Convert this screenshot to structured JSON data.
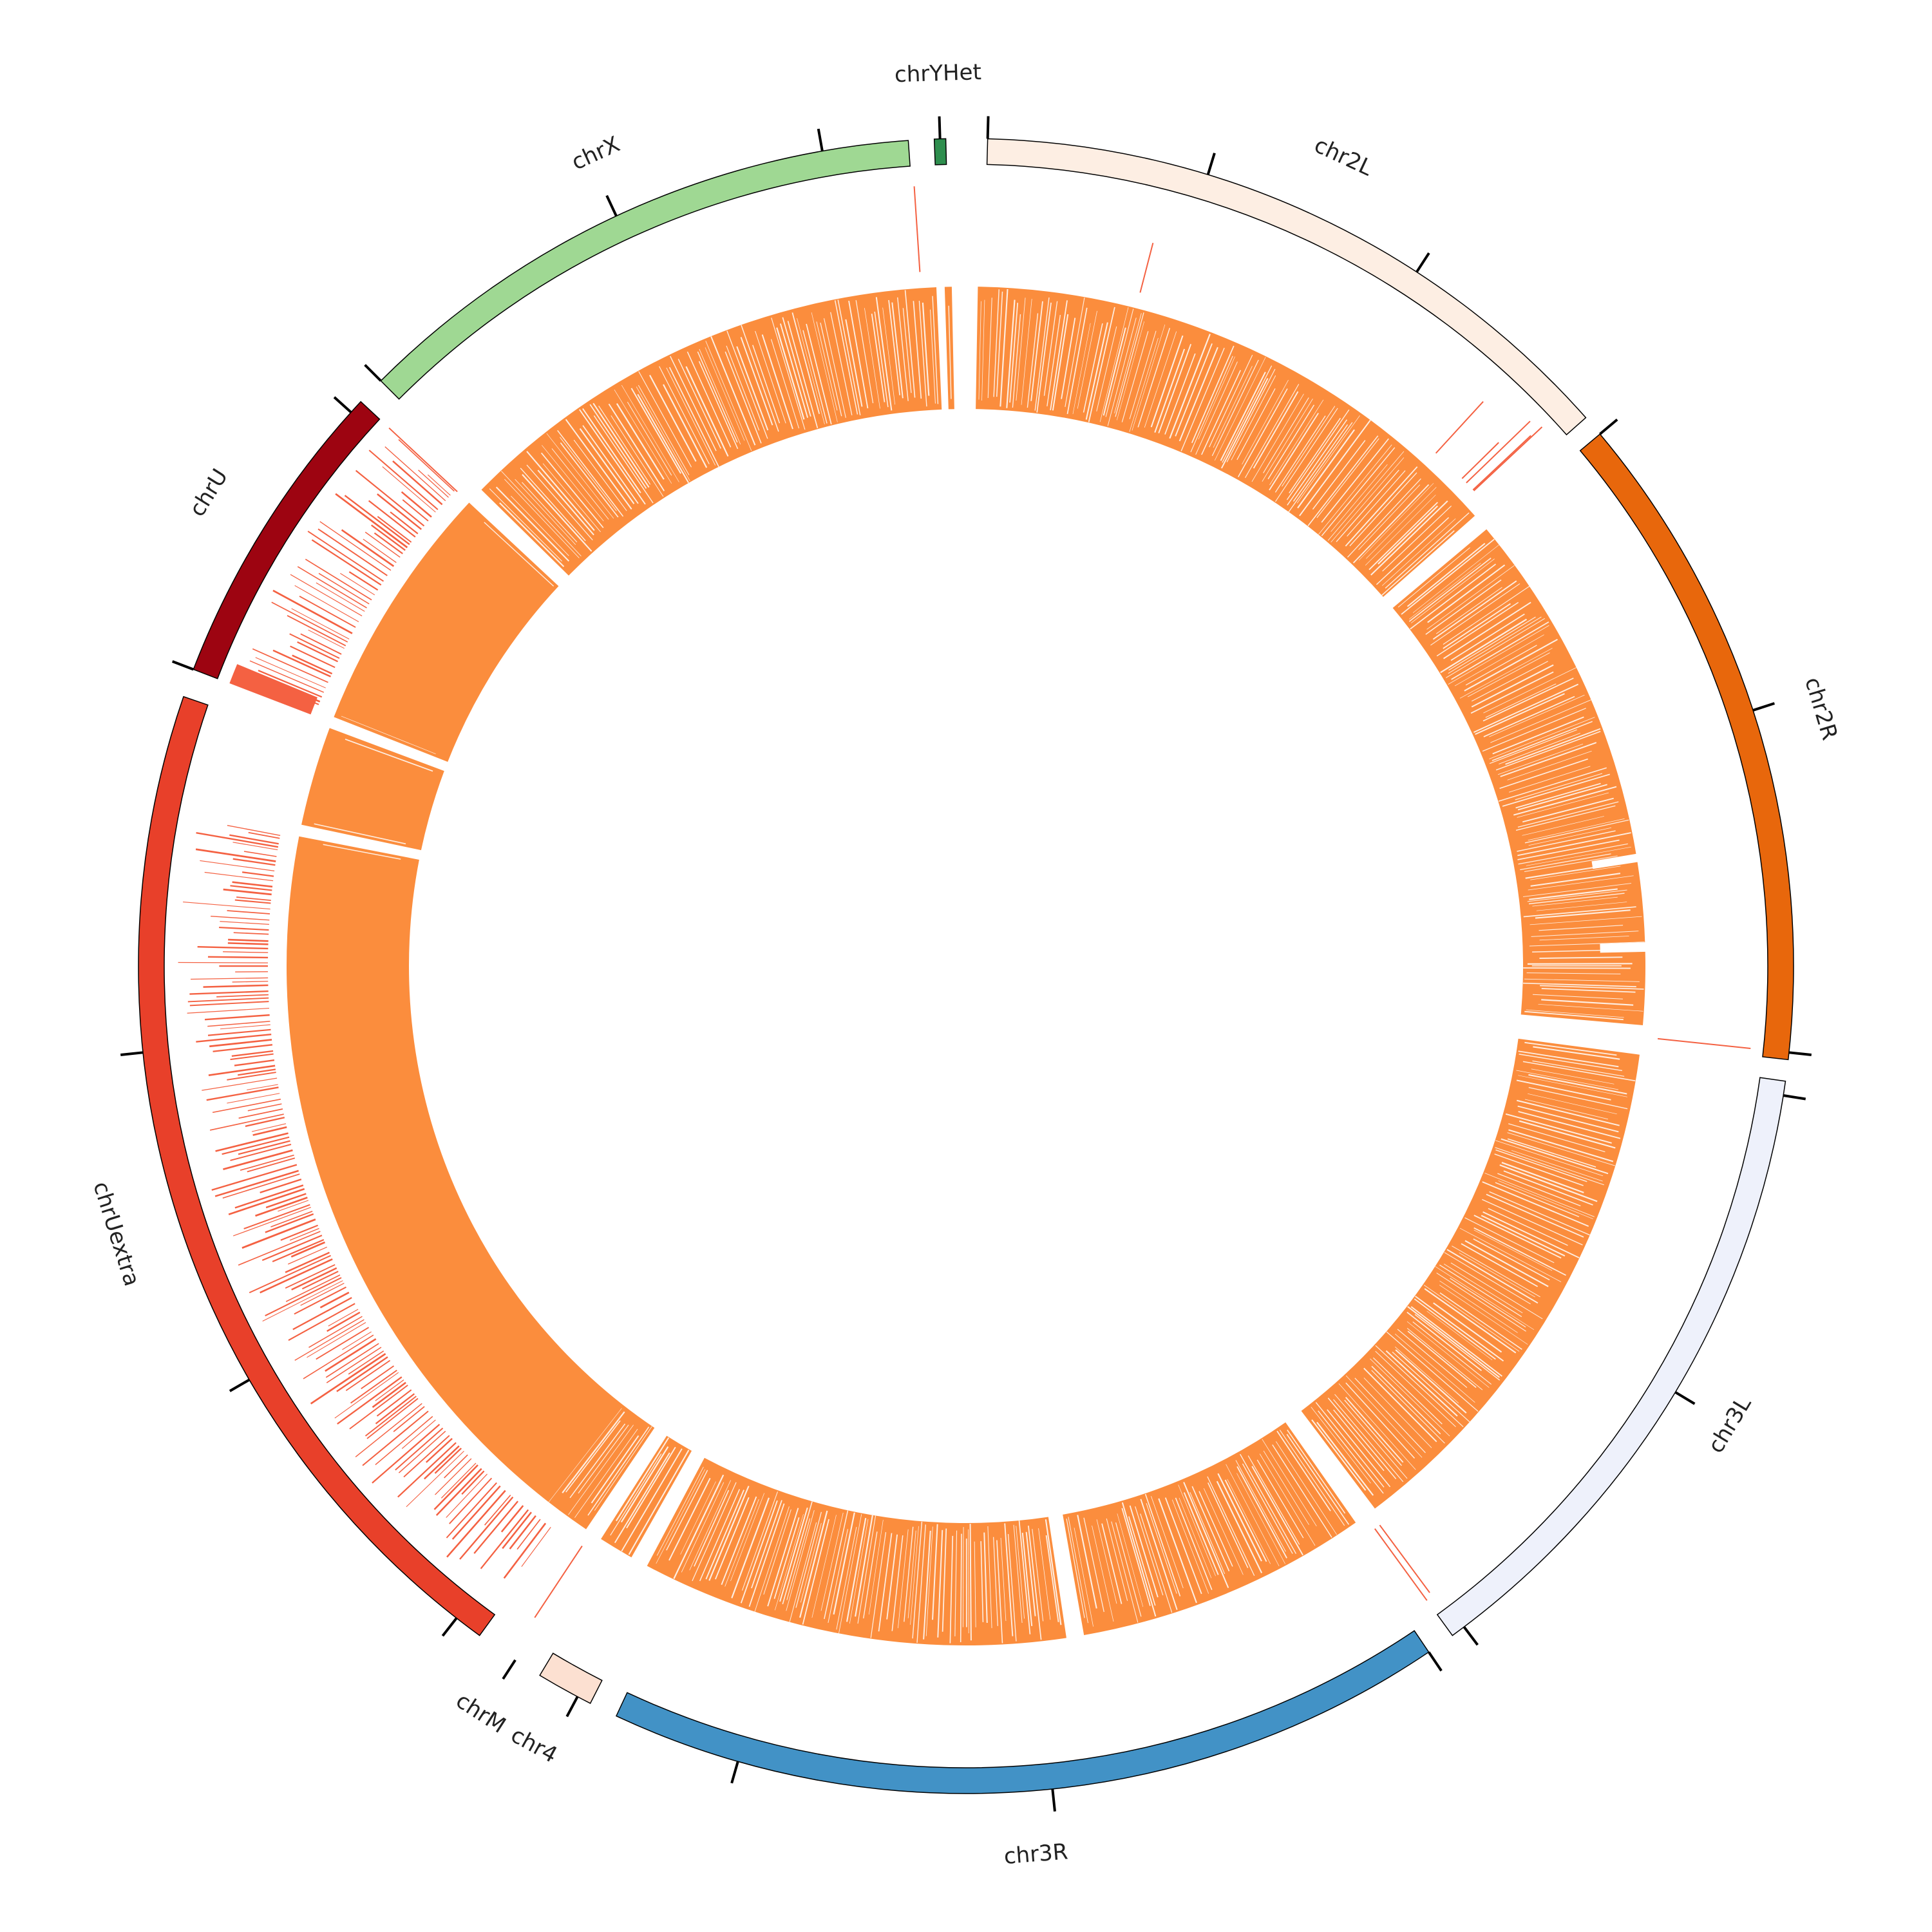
{
  "chart_data": {
    "type": "circos",
    "chromosomes": [
      {
        "name": "chr2L",
        "start": 1.5,
        "end": 48.5,
        "color": "#fdeee3",
        "ticks": [
          1.5,
          17.0,
          33.0
        ]
      },
      {
        "name": "chr2R",
        "start": 50.0,
        "end": 96.5,
        "color": "#e8670c",
        "ticks": [
          50.0,
          72.0,
          96.0
        ]
      },
      {
        "name": "chr3L",
        "start": 98.0,
        "end": 144.0,
        "color": "#eef1fb",
        "ticks": [
          99.0,
          121.0,
          143.0
        ]
      },
      {
        "name": "chr3R",
        "start": 146.0,
        "end": 205.0,
        "color": "#4292c6",
        "ticks": [
          146.0,
          174.0,
          196.0
        ]
      },
      {
        "name": "chr4",
        "start": 207.0,
        "end": 211.0,
        "color": "#fce0d1",
        "ticks": [
          208.0
        ]
      },
      {
        "name": "chrM",
        "start": 213.0,
        "end": 213.0,
        "color": "#ffffff",
        "ticks": [
          213.0
        ]
      },
      {
        "name": "chrUextra",
        "start": 216.0,
        "end": 289.0,
        "color": "#e8402a",
        "ticks": [
          218.0,
          240.0,
          264.0
        ]
      },
      {
        "name": "chrU",
        "start": 291.0,
        "end": 313.0,
        "color": "#9d0411",
        "ticks": [
          291.0,
          312.0
        ]
      },
      {
        "name": "chrX",
        "start": 315.0,
        "end": 356.0,
        "color": "#9fd893",
        "ticks": [
          315.0,
          335.0,
          350.0
        ]
      },
      {
        "name": "chrYHet",
        "start": 357.8,
        "end": 358.6,
        "color": "#2e8e4e",
        "ticks": [
          358.2
        ]
      }
    ],
    "heat_track": {
      "color": "#fb8d3d",
      "segments": [
        [
          1.0,
          48.5
        ],
        [
          50.0,
          95.0
        ],
        [
          97.5,
          143.0
        ],
        [
          145.0,
          170.0
        ],
        [
          171.5,
          208.0
        ],
        [
          209.5,
          212.5
        ],
        [
          214.0,
          281.0
        ],
        [
          282.0,
          290.5
        ],
        [
          291.5,
          313.0
        ],
        [
          314.5,
          357.5
        ],
        [
          358.2,
          358.8
        ]
      ],
      "solid": [
        [
          218.0,
          280.5
        ],
        [
          282.5,
          290.0
        ],
        [
          292.0,
          312.5
        ]
      ]
    },
    "scatter_track": {
      "color": "#f46142",
      "spikes": [
        {
          "pos": 14.5,
          "len": 0.55
        },
        {
          "pos": 42.5,
          "len": 0.75
        },
        {
          "pos": 45.5,
          "len": 0.55
        },
        {
          "pos": 46.0,
          "len": 0.95
        },
        {
          "pos": 46.8,
          "len": 0.85
        },
        {
          "pos": 46.9,
          "len": 1.0
        },
        {
          "pos": 96.0,
          "len": 1.0
        },
        {
          "pos": 143.5,
          "len": 0.9
        },
        {
          "pos": 144.0,
          "len": 0.95
        },
        {
          "pos": 213.5,
          "len": 0.92
        },
        {
          "pos": 313.0,
          "len": 1.0
        },
        {
          "pos": 356.2,
          "len": 0.92
        }
      ],
      "dense": [
        [
          216.5,
          281.0
        ],
        [
          292.0,
          313.0
        ]
      ],
      "band": [
        [
          291.0,
          292.5
        ]
      ]
    }
  }
}
